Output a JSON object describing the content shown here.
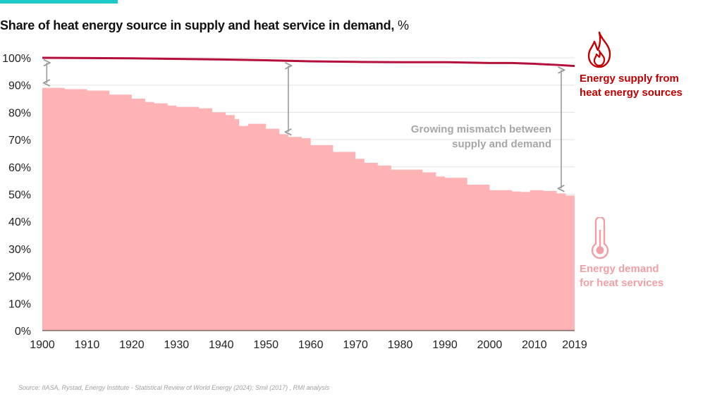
{
  "title": {
    "text": "Share of heat energy source in supply and heat service in demand,",
    "unit": "%"
  },
  "colors": {
    "accent": "#1ec8c8",
    "supply": "#b5103c",
    "supply_label": "#c00000",
    "demand_fill": "#ffb3b5",
    "demand_label": "#f0a0a4",
    "annotation": "#a6a6a6",
    "arrow": "#9a9a9a",
    "grid": "#e3e3e3"
  },
  "legend": {
    "supply": {
      "line1": "Energy supply from",
      "line2": "heat energy sources",
      "icon": "flame-icon"
    },
    "demand": {
      "line1": "Energy demand",
      "line2": "for heat services",
      "icon": "thermometer-icon"
    }
  },
  "annotation": {
    "line1": "Growing mismatch between",
    "line2": "supply and demand"
  },
  "source": "Source: IIASA, Rystad, Energy Institute - Statistical Review of World Energy (2024); Smil (2017) , RMI analysis",
  "chart_data": {
    "type": "area",
    "xlim": [
      1900,
      2019
    ],
    "ylim": [
      0,
      100
    ],
    "x_ticks": [
      1900,
      1910,
      1920,
      1930,
      1940,
      1950,
      1960,
      1970,
      1980,
      1990,
      2000,
      2010,
      2019
    ],
    "y_ticks": [
      0,
      10,
      20,
      30,
      40,
      50,
      60,
      70,
      80,
      90,
      100
    ],
    "y_tick_labels": [
      "0%",
      "10%",
      "20%",
      "30%",
      "40%",
      "50%",
      "60%",
      "70%",
      "80%",
      "90%",
      "100%"
    ],
    "x_tick_labels": [
      "1900",
      "1910",
      "1920",
      "1930",
      "1940",
      "1950",
      "1960",
      "1970",
      "1980",
      "1990",
      "2000",
      "2010",
      "2019"
    ],
    "grid": "horizontal",
    "series": [
      {
        "name": "Energy supply from heat energy sources",
        "type": "line",
        "points": [
          [
            1900,
            100
          ],
          [
            1920,
            99.8
          ],
          [
            1940,
            99.4
          ],
          [
            1950,
            99.1
          ],
          [
            1960,
            98.7
          ],
          [
            1970,
            98.5
          ],
          [
            1980,
            98.4
          ],
          [
            1990,
            98.4
          ],
          [
            2000,
            98.1
          ],
          [
            2005,
            98.1
          ],
          [
            2010,
            97.8
          ],
          [
            2015,
            97.4
          ],
          [
            2019,
            97.0
          ]
        ]
      },
      {
        "name": "Energy demand for heat services",
        "type": "step-area",
        "points": [
          [
            1900,
            89
          ],
          [
            1905,
            88.5
          ],
          [
            1910,
            88
          ],
          [
            1915,
            86.5
          ],
          [
            1920,
            85
          ],
          [
            1923,
            83.8
          ],
          [
            1925,
            83.3
          ],
          [
            1928,
            82.5
          ],
          [
            1930,
            82
          ],
          [
            1935,
            81.5
          ],
          [
            1938,
            80
          ],
          [
            1941,
            79
          ],
          [
            1943,
            77.5
          ],
          [
            1944,
            75
          ],
          [
            1946,
            75.8
          ],
          [
            1950,
            74
          ],
          [
            1953,
            72
          ],
          [
            1955,
            71
          ],
          [
            1958,
            70.5
          ],
          [
            1960,
            68
          ],
          [
            1965,
            65.5
          ],
          [
            1970,
            63
          ],
          [
            1972,
            61.5
          ],
          [
            1975,
            60.5
          ],
          [
            1978,
            59
          ],
          [
            1982,
            59
          ],
          [
            1985,
            58
          ],
          [
            1988,
            56.5
          ],
          [
            1990,
            56
          ],
          [
            1995,
            53.5
          ],
          [
            2000,
            51.5
          ],
          [
            2005,
            51
          ],
          [
            2007,
            50.8
          ],
          [
            2009,
            51.5
          ],
          [
            2012,
            51.2
          ],
          [
            2015,
            50.3
          ],
          [
            2017,
            49.5
          ],
          [
            2019,
            49
          ]
        ]
      }
    ],
    "gap_arrows_years": [
      1901,
      1955,
      2016
    ]
  }
}
